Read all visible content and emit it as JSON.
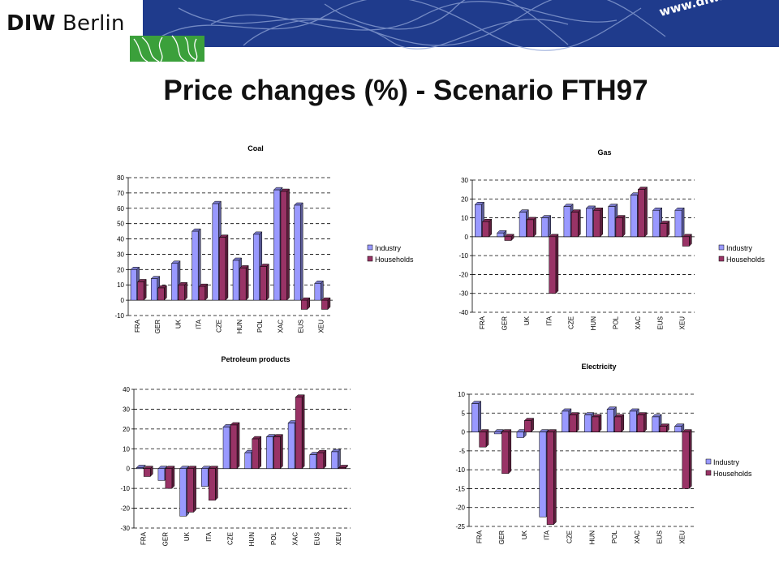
{
  "header": {
    "logo_bold": "DIW",
    "logo_rest": "Berlin",
    "website": "www.diw.de",
    "banner_color": "#1f3b8c",
    "accent_green": "#3ba03b"
  },
  "slide": {
    "title": "Price changes (%) - Scenario FTH97"
  },
  "chart_data": [
    {
      "type": "bar",
      "title": "Coal",
      "categories": [
        "FRA",
        "GER",
        "UK",
        "ITA",
        "CZE",
        "HUN",
        "POL",
        "XAC",
        "EUS",
        "XEU"
      ],
      "series": [
        {
          "name": "Industry",
          "color": "#9999ff",
          "values": [
            20,
            14,
            24,
            45,
            63,
            26,
            43,
            72,
            62,
            11
          ]
        },
        {
          "name": "Households",
          "color": "#993366",
          "values": [
            12,
            8,
            10,
            9,
            41,
            21,
            22,
            71,
            -6,
            -6
          ]
        }
      ],
      "ylim": [
        -10,
        80
      ],
      "ticks": [
        -10,
        0,
        10,
        20,
        30,
        40,
        50,
        60,
        70,
        80
      ],
      "grid": true,
      "legend": "right"
    },
    {
      "type": "bar",
      "title": "Gas",
      "categories": [
        "FRA",
        "GER",
        "UK",
        "ITA",
        "CZE",
        "HUN",
        "POL",
        "XAC",
        "EUS",
        "XEU"
      ],
      "series": [
        {
          "name": "Industry",
          "color": "#9999ff",
          "values": [
            17,
            2,
            13,
            10,
            16,
            15,
            16,
            22,
            14,
            14
          ]
        },
        {
          "name": "Households",
          "color": "#993366",
          "values": [
            8,
            -2,
            9,
            -30,
            13,
            14,
            10,
            25,
            7,
            -5
          ]
        }
      ],
      "ylim": [
        -40,
        30
      ],
      "ticks": [
        -40,
        -30,
        -20,
        -10,
        0,
        10,
        20,
        30
      ],
      "grid": true,
      "legend": "right"
    },
    {
      "type": "bar",
      "title": "Petroleum products",
      "categories": [
        "FRA",
        "GER",
        "UK",
        "ITA",
        "CZE",
        "HUN",
        "POL",
        "XAC",
        "EUS",
        "XEU"
      ],
      "series": [
        {
          "name": "Industry",
          "color": "#9999ff",
          "values": [
            0.5,
            -6,
            -24,
            -9,
            21,
            8,
            16,
            23,
            7,
            8.5
          ]
        },
        {
          "name": "Households",
          "color": "#993366",
          "values": [
            -4,
            -10,
            -22,
            -16,
            22,
            15,
            16,
            36,
            8,
            0.5
          ]
        }
      ],
      "ylim": [
        -30,
        40
      ],
      "ticks": [
        -30,
        -20,
        -10,
        0,
        10,
        20,
        30,
        40
      ],
      "grid": true,
      "legend": "none"
    },
    {
      "type": "bar",
      "title": "Electricity",
      "categories": [
        "FRA",
        "GER",
        "UK",
        "ITA",
        "CZE",
        "HUN",
        "POL",
        "XAC",
        "EUS",
        "XEU"
      ],
      "series": [
        {
          "name": "Industry",
          "color": "#9999ff",
          "values": [
            7.5,
            -0.5,
            -1.5,
            -22.5,
            5.5,
            4.5,
            6,
            5.5,
            4,
            1.5
          ]
        },
        {
          "name": "Households",
          "color": "#993366",
          "values": [
            -4,
            -11,
            3,
            -24.5,
            4.5,
            4,
            4,
            4.5,
            1.5,
            -15
          ]
        }
      ],
      "ylim": [
        -25,
        10
      ],
      "ticks": [
        -25,
        -20,
        -15,
        -10,
        -5,
        0,
        5,
        10
      ],
      "grid": true,
      "legend": "right"
    }
  ]
}
